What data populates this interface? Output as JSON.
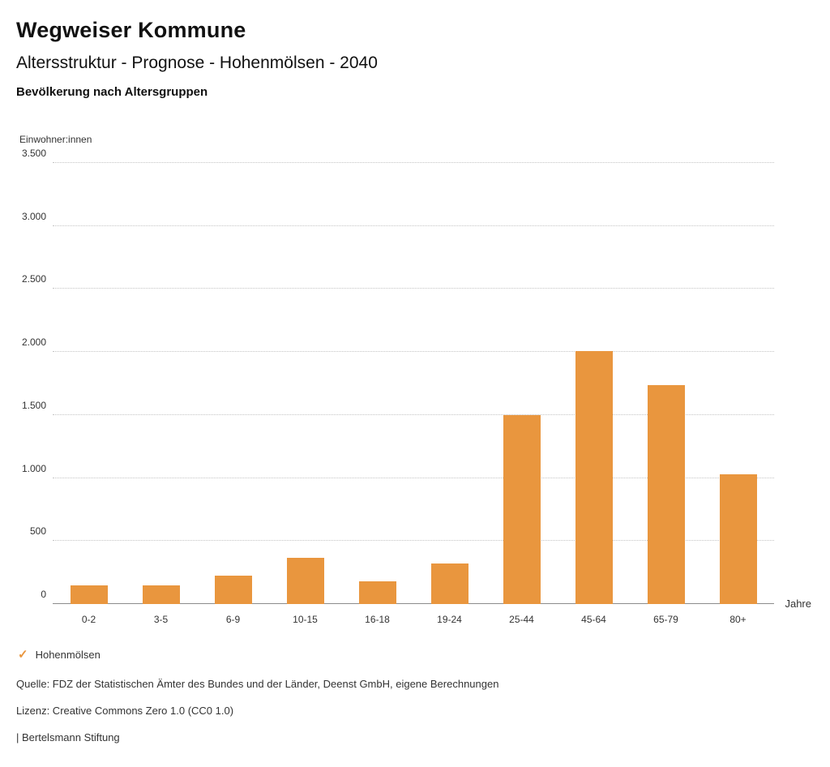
{
  "header": {
    "title": "Wegweiser Kommune",
    "subtitle": "Altersstruktur - Prognose - Hohenmölsen - 2040",
    "section_title": "Bevölkerung nach Altersgruppen"
  },
  "chart_data": {
    "type": "bar",
    "title": "Bevölkerung nach Altersgruppen",
    "ylabel": "Einwohner:innen",
    "x_unit_label": "Jahre",
    "categories": [
      "0-2",
      "3-5",
      "6-9",
      "10-15",
      "16-18",
      "19-24",
      "25-44",
      "45-64",
      "65-79",
      "80+"
    ],
    "series": [
      {
        "name": "Hohenmölsen",
        "values": [
          145,
          150,
          225,
          365,
          180,
          325,
          1500,
          2010,
          1740,
          1030
        ]
      }
    ],
    "ylim": [
      0,
      3500
    ],
    "ytick_step": 500,
    "ytick_labels": [
      "0",
      "500",
      "1.000",
      "1.500",
      "2.000",
      "2.500",
      "3.000",
      "3.500"
    ],
    "grid": true,
    "grid_style": "dotted",
    "bar_color": "#E9963E",
    "legend_position": "bottom"
  },
  "legend": {
    "check_icon": "✓",
    "items": [
      {
        "label": "Hohenmölsen",
        "color": "#E9963E"
      }
    ]
  },
  "footer": {
    "source": "Quelle: FDZ der Statistischen Ämter des Bundes und der Länder, Deenst GmbH, eigene Berechnungen",
    "license": "Lizenz: Creative Commons Zero 1.0 (CC0 1.0)",
    "attribution": "| Bertelsmann Stiftung"
  }
}
